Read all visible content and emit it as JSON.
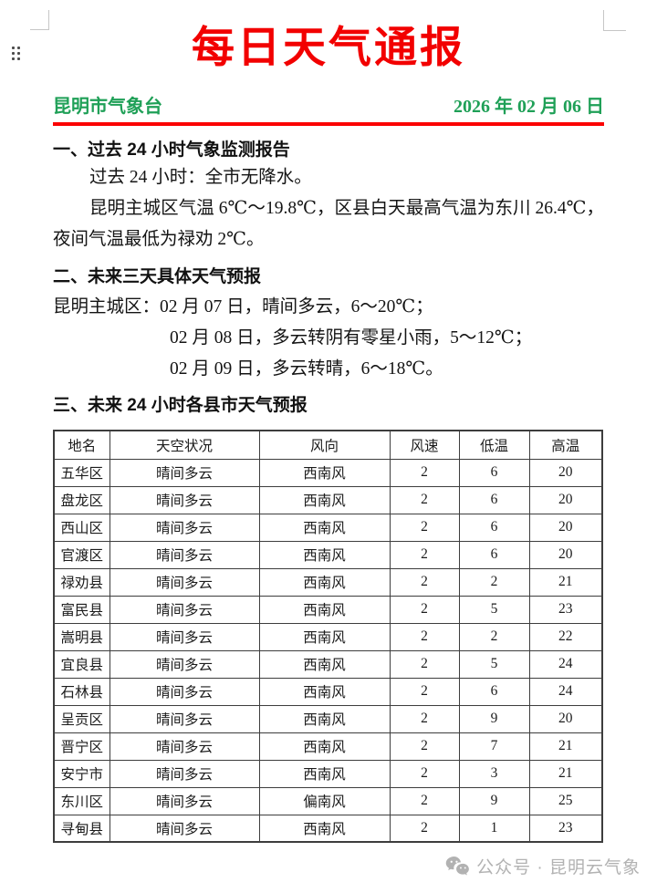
{
  "header": {
    "title": "每日天气通报",
    "agency": "昆明市气象台",
    "date": "2026 年 02 月 06 日"
  },
  "section1": {
    "heading": "一、过去 24 小时气象监测报告",
    "para1": "过去 24 小时：全市无降水。",
    "para2": "昆明主城区气温 6℃～19.8℃，区县白天最高气温为东川 26.4℃，夜间气温最低为禄劝 2℃。"
  },
  "section2": {
    "heading": "二、未来三天具体天气预报",
    "line1": "昆明主城区：02 月 07 日，晴间多云，6～20℃；",
    "line2": "02 月 08 日，多云转阴有零星小雨，5～12℃；",
    "line3": "02 月 09 日，多云转晴，6～18℃。"
  },
  "section3": {
    "heading": "三、未来 24 小时各县市天气预报"
  },
  "forecast_table": {
    "headers": [
      "地名",
      "天空状况",
      "风向",
      "风速",
      "低温",
      "高温"
    ],
    "rows": [
      [
        "五华区",
        "晴间多云",
        "西南风",
        "2",
        "6",
        "20"
      ],
      [
        "盘龙区",
        "晴间多云",
        "西南风",
        "2",
        "6",
        "20"
      ],
      [
        "西山区",
        "晴间多云",
        "西南风",
        "2",
        "6",
        "20"
      ],
      [
        "官渡区",
        "晴间多云",
        "西南风",
        "2",
        "6",
        "20"
      ],
      [
        "禄劝县",
        "晴间多云",
        "西南风",
        "2",
        "2",
        "21"
      ],
      [
        "富民县",
        "晴间多云",
        "西南风",
        "2",
        "5",
        "23"
      ],
      [
        "嵩明县",
        "晴间多云",
        "西南风",
        "2",
        "2",
        "22"
      ],
      [
        "宜良县",
        "晴间多云",
        "西南风",
        "2",
        "5",
        "24"
      ],
      [
        "石林县",
        "晴间多云",
        "西南风",
        "2",
        "6",
        "24"
      ],
      [
        "呈贡区",
        "晴间多云",
        "西南风",
        "2",
        "9",
        "20"
      ],
      [
        "晋宁区",
        "晴间多云",
        "西南风",
        "2",
        "7",
        "21"
      ],
      [
        "安宁市",
        "晴间多云",
        "西南风",
        "2",
        "3",
        "21"
      ],
      [
        "东川区",
        "晴间多云",
        "偏南风",
        "2",
        "9",
        "25"
      ],
      [
        "寻甸县",
        "晴间多云",
        "西南风",
        "2",
        "1",
        "23"
      ]
    ]
  },
  "watermark": {
    "icon": "wechat-icon",
    "text": "公众号 · 昆明云气象"
  },
  "colors": {
    "title_red": "#f20000",
    "rule_red": "#fb0000",
    "header_green": "#1fa057",
    "watermark_gray": "#b2b2b2"
  }
}
